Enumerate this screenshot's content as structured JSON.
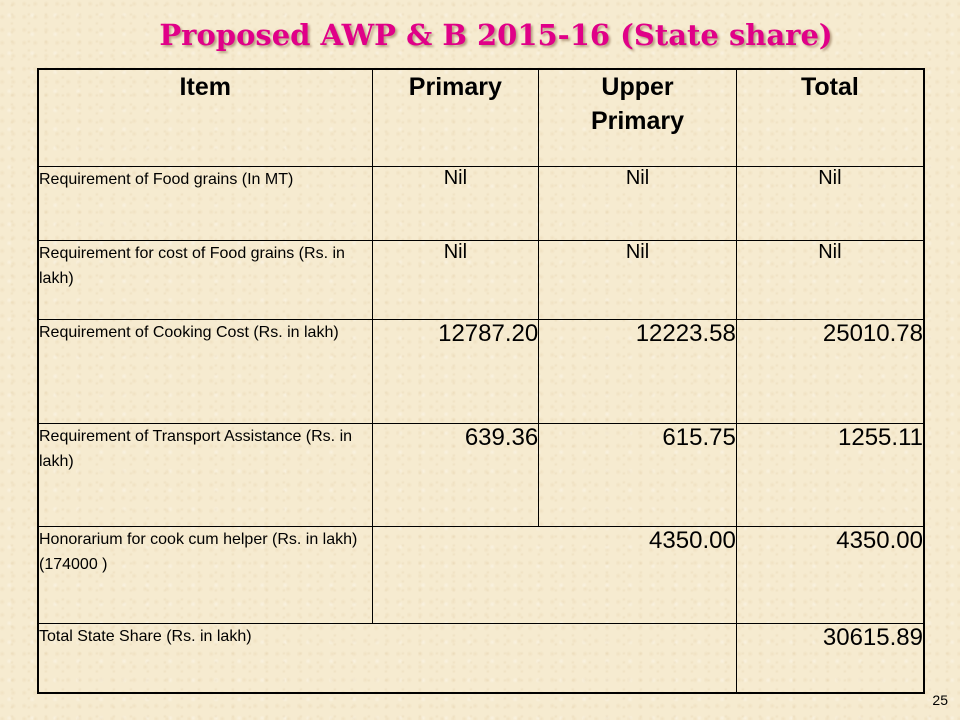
{
  "title": "Proposed AWP & B 2015-16 (State share)",
  "table": {
    "headers": [
      "Item",
      "Primary",
      "Upper\nPrimary",
      "Total"
    ],
    "rows": [
      {
        "item": "Requirement of Food grains (In MT)",
        "primary": "Nil",
        "upper_primary": "Nil",
        "total": "Nil"
      },
      {
        "item": "Requirement for cost of Food grains (Rs. in lakh)",
        "primary": "Nil",
        "upper_primary": "Nil",
        "total": "Nil"
      },
      {
        "item": "Requirement of Cooking Cost (Rs. in lakh)",
        "primary": "12787.20",
        "upper_primary": "12223.58",
        "total": "25010.78"
      },
      {
        "item": "Requirement of Transport Assistance (Rs. in lakh)",
        "primary": "639.36",
        "upper_primary": "615.75",
        "total": "1255.11"
      },
      {
        "item": "Honorarium for cook cum helper (Rs. in lakh) (174000 )",
        "combined": "4350.00",
        "total": "4350.00"
      },
      {
        "item": "Total State Share (Rs. in lakh)",
        "total": "30615.89"
      }
    ]
  },
  "page_number": "25",
  "colors": {
    "title": "#e00088",
    "background": "#f6ebd0"
  }
}
